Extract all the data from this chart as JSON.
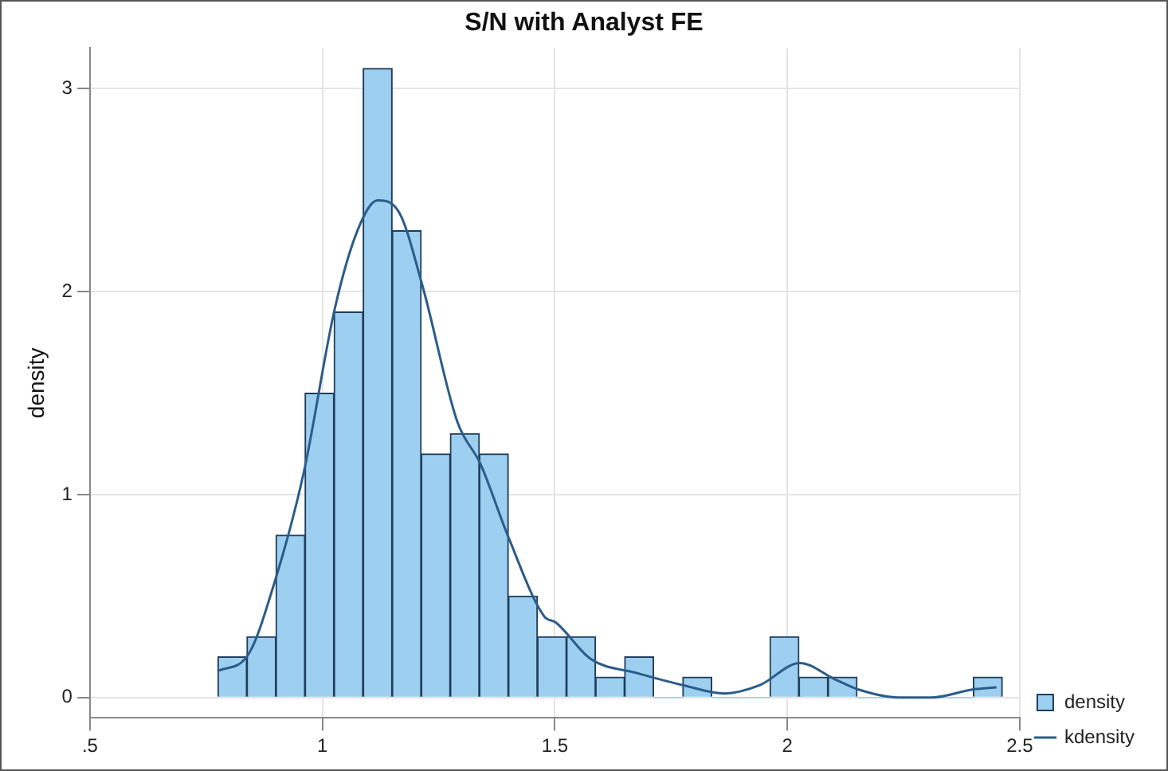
{
  "chart_data": {
    "type": "histogram",
    "title": "S/N with Analyst FE",
    "ylabel": "density",
    "bins": [
      0.775,
      0.8375,
      0.9,
      0.9625,
      1.025,
      1.0875,
      1.15,
      1.2125,
      1.275,
      1.3375,
      1.4,
      1.4625,
      1.525,
      1.5875,
      1.65,
      1.7125,
      1.775,
      1.8375,
      1.9,
      1.9625,
      2.025,
      2.0875,
      2.15,
      2.2125,
      2.275,
      2.3375,
      2.4,
      2.4625
    ],
    "series": [
      {
        "name": "density",
        "color": "#9dcff0",
        "values": [
          0.2,
          0.3,
          0.8,
          1.5,
          1.9,
          3.1,
          2.3,
          1.2,
          1.3,
          1.2,
          0.5,
          0.3,
          0.3,
          0.1,
          0.2,
          0,
          0.1,
          0,
          0,
          0.3,
          0.1,
          0.1,
          0,
          0,
          0,
          0,
          0.1
        ]
      },
      {
        "name": "kdensity",
        "type": "line",
        "color": "#2b5c8a",
        "x": [
          0.774,
          0.84,
          0.896,
          0.959,
          1.027,
          1.077,
          1.119,
          1.165,
          1.215,
          1.29,
          1.34,
          1.4,
          1.477,
          1.502,
          1.577,
          1.677,
          1.777,
          1.865,
          1.94,
          2.027,
          2.102,
          2.152,
          2.24,
          2.31,
          2.4,
          2.45
        ],
        "values": [
          0.13,
          0.21,
          0.56,
          1.1,
          1.92,
          2.31,
          2.45,
          2.39,
          2.03,
          1.36,
          1.15,
          0.79,
          0.4,
          0.37,
          0.19,
          0.12,
          0.06,
          0.02,
          0.06,
          0.17,
          0.09,
          0.04,
          0,
          0,
          0.04,
          0.05
        ]
      }
    ],
    "xlim": [
      0.5,
      2.5
    ],
    "xticks": [
      {
        "value": 0.5,
        "label": ".5"
      },
      1,
      1.5,
      2,
      2.5
    ],
    "ylim": [
      -0.1,
      3.2
    ],
    "yticks": [
      0,
      1,
      2,
      3
    ],
    "grid": true,
    "legend": "right"
  }
}
